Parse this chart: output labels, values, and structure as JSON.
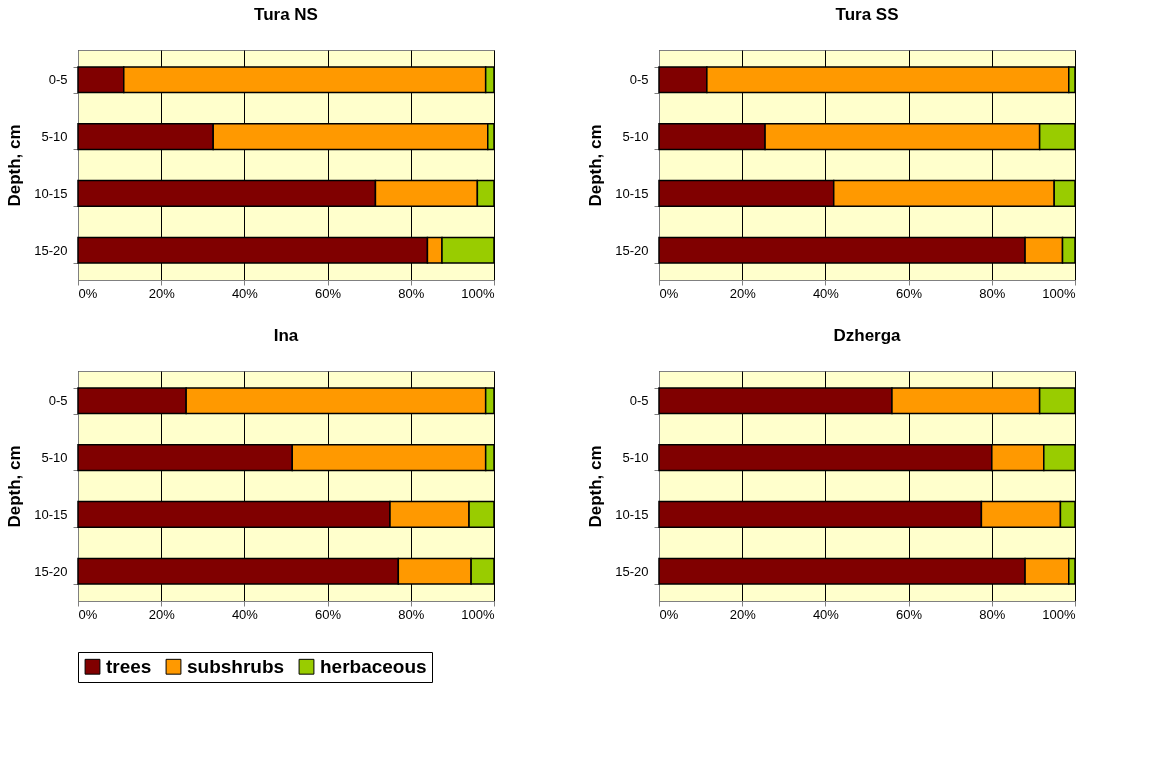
{
  "chart_data": [
    {
      "type": "bar",
      "title": "Tura NS",
      "ylabel": "Depth, cm",
      "categories": [
        "0-5",
        "5-10",
        "10-15",
        "15-20"
      ],
      "stacked": true,
      "orientation": "horizontal",
      "xlim": [
        0,
        100
      ],
      "xticks": [
        {
          "value": 0,
          "label": "0%"
        },
        {
          "value": 20,
          "label": "20%"
        },
        {
          "value": 40,
          "label": "40%"
        },
        {
          "value": 60,
          "label": "60%"
        },
        {
          "value": 80,
          "label": "80%"
        },
        {
          "value": 100,
          "label": "100%"
        }
      ],
      "grid": "x",
      "legend": "bottom",
      "series": [
        {
          "name": "trees",
          "color": "#800000",
          "values": [
            11,
            32.5,
            71.5,
            84
          ]
        },
        {
          "name": "subshrubs",
          "color": "#ff9900",
          "values": [
            87,
            66,
            24.5,
            3.5
          ]
        },
        {
          "name": "herbaceous",
          "color": "#99cc00",
          "values": [
            2,
            1.5,
            4,
            12.5
          ]
        }
      ]
    },
    {
      "type": "bar",
      "title": "Tura SS",
      "ylabel": "Depth, cm",
      "categories": [
        "0-5",
        "5-10",
        "10-15",
        "15-20"
      ],
      "stacked": true,
      "orientation": "horizontal",
      "xlim": [
        0,
        100
      ],
      "xticks": [
        {
          "value": 0,
          "label": "0%"
        },
        {
          "value": 20,
          "label": "20%"
        },
        {
          "value": 40,
          "label": "40%"
        },
        {
          "value": 60,
          "label": "60%"
        },
        {
          "value": 80,
          "label": "80%"
        },
        {
          "value": 100,
          "label": "100%"
        }
      ],
      "grid": "x",
      "legend": "bottom",
      "series": [
        {
          "name": "trees",
          "color": "#800000",
          "values": [
            11.5,
            25.5,
            42,
            88
          ]
        },
        {
          "name": "subshrubs",
          "color": "#ff9900",
          "values": [
            87,
            66,
            53,
            9
          ]
        },
        {
          "name": "herbaceous",
          "color": "#99cc00",
          "values": [
            1.5,
            8.5,
            5,
            3
          ]
        }
      ]
    },
    {
      "type": "bar",
      "title": "Ina",
      "ylabel": "Depth, cm",
      "categories": [
        "0-5",
        "5-10",
        "10-15",
        "15-20"
      ],
      "stacked": true,
      "orientation": "horizontal",
      "xlim": [
        0,
        100
      ],
      "xticks": [
        {
          "value": 0,
          "label": "0%"
        },
        {
          "value": 20,
          "label": "20%"
        },
        {
          "value": 40,
          "label": "40%"
        },
        {
          "value": 60,
          "label": "60%"
        },
        {
          "value": 80,
          "label": "80%"
        },
        {
          "value": 100,
          "label": "100%"
        }
      ],
      "grid": "x",
      "legend": "bottom",
      "series": [
        {
          "name": "trees",
          "color": "#800000",
          "values": [
            26,
            51.5,
            75,
            77
          ]
        },
        {
          "name": "subshrubs",
          "color": "#ff9900",
          "values": [
            72,
            46.5,
            19,
            17.5
          ]
        },
        {
          "name": "herbaceous",
          "color": "#99cc00",
          "values": [
            2,
            2,
            6,
            5.5
          ]
        }
      ]
    },
    {
      "type": "bar",
      "title": "Dzherga",
      "ylabel": "Depth, cm",
      "categories": [
        "0-5",
        "5-10",
        "10-15",
        "15-20"
      ],
      "stacked": true,
      "orientation": "horizontal",
      "xlim": [
        0,
        100
      ],
      "xticks": [
        {
          "value": 0,
          "label": "0%"
        },
        {
          "value": 20,
          "label": "20%"
        },
        {
          "value": 40,
          "label": "40%"
        },
        {
          "value": 60,
          "label": "60%"
        },
        {
          "value": 80,
          "label": "80%"
        },
        {
          "value": 100,
          "label": "100%"
        }
      ],
      "grid": "x",
      "legend": "bottom",
      "series": [
        {
          "name": "trees",
          "color": "#800000",
          "values": [
            56,
            80,
            77.5,
            88
          ]
        },
        {
          "name": "subshrubs",
          "color": "#ff9900",
          "values": [
            35.5,
            12.5,
            19,
            10.5
          ]
        },
        {
          "name": "herbaceous",
          "color": "#99cc00",
          "values": [
            8.5,
            7.5,
            3.5,
            1.5
          ]
        }
      ]
    }
  ]
}
